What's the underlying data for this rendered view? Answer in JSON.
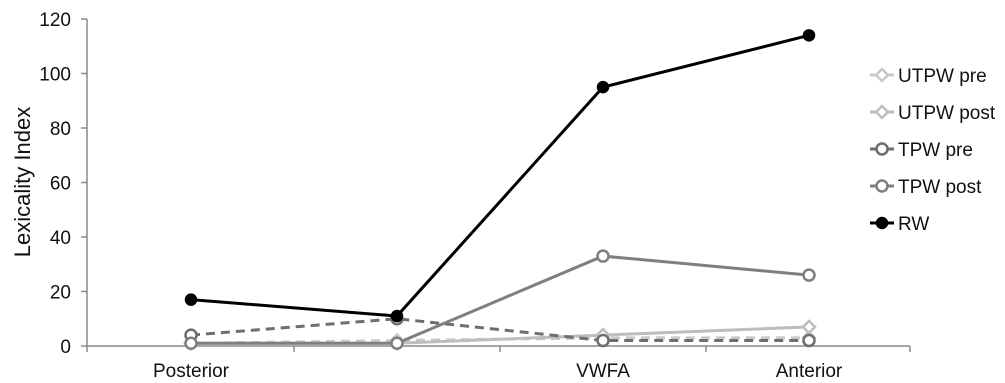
{
  "chart_data": {
    "type": "line",
    "title": "",
    "xlabel": "",
    "ylabel": "Lexicality Index",
    "ylim": [
      0,
      120
    ],
    "yticks": [
      0,
      20,
      40,
      60,
      80,
      100,
      120
    ],
    "grid": false,
    "legend_position": "right",
    "categories": [
      "Posterior",
      "",
      "VWFA",
      "Anterior"
    ],
    "series": [
      {
        "name": "UTPW pre",
        "values": [
          1,
          2,
          3,
          3
        ],
        "color": "#c8c8c8",
        "dash": true,
        "marker": "diamond"
      },
      {
        "name": "UTPW post",
        "values": [
          1,
          1,
          4,
          7
        ],
        "color": "#bdbdbd",
        "dash": false,
        "marker": "diamond"
      },
      {
        "name": "TPW pre",
        "values": [
          4,
          10,
          2,
          2
        ],
        "color": "#6e6e6e",
        "dash": true,
        "marker": "circle"
      },
      {
        "name": "TPW post",
        "values": [
          1,
          1,
          33,
          26
        ],
        "color": "#7f7f7f",
        "dash": false,
        "marker": "circle"
      },
      {
        "name": "RW",
        "values": [
          17,
          11,
          95,
          114
        ],
        "color": "#000000",
        "dash": false,
        "marker": "filled-circle"
      }
    ]
  }
}
